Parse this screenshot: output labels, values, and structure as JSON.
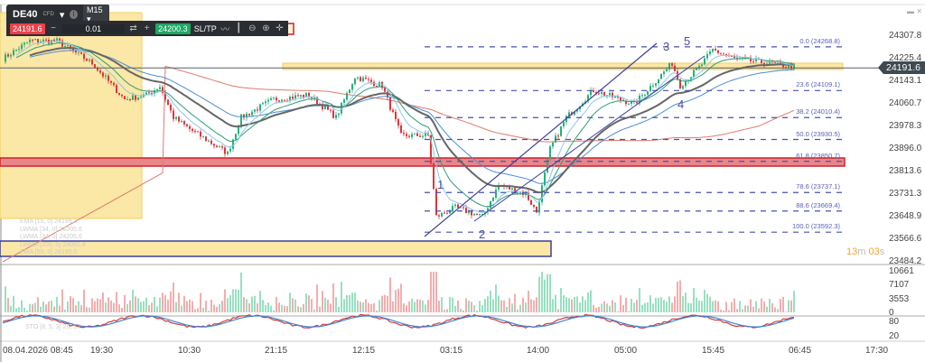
{
  "toolbar": {
    "symbol": "DE40",
    "symbol_type": "CFD",
    "timeframe": "M15",
    "sell_price": "24191.6",
    "quantity": "0.01",
    "buy_price": "24200.3",
    "sltp_label": "SL/TP",
    "minus": "−",
    "plus": "+"
  },
  "price_axis": [
    "24307.8",
    "24225.4",
    "24143.1",
    "24060.7",
    "23978.3",
    "23896.0",
    "23813.6",
    "23731.3",
    "23648.9",
    "23566.6",
    "23484.2"
  ],
  "current_price": "24191.6",
  "volume_axis": [
    "10661",
    "7107",
    "3553",
    "0"
  ],
  "stoch_axis": [
    "80",
    "20"
  ],
  "time_axis": [
    "08.04.2026 08:45",
    "19:30",
    "10:30",
    "21:15",
    "12:15",
    "03:15",
    "14:00",
    "05:00",
    "15:45",
    "06:45",
    "17:30"
  ],
  "timer": {
    "min": "13",
    "min_unit": "m",
    "sec": "03",
    "sec_unit": "s"
  },
  "fib_levels": [
    {
      "label": "0.0 (24268.8)",
      "price": 24268.8
    },
    {
      "label": "23.6 (24109.1)",
      "price": 24109.1
    },
    {
      "label": "38.2 (24010.4)",
      "price": 24010.4
    },
    {
      "label": "50.0 (23930.5)",
      "price": 23930.5
    },
    {
      "label": "61.8 (23850.7)",
      "price": 23850.7
    },
    {
      "label": "78.6 (23737.1)",
      "price": 23737.1
    },
    {
      "label": "88.6 (23669.4)",
      "price": 23669.4
    },
    {
      "label": "100.0 (23592.3)",
      "price": 23592.3
    }
  ],
  "waves": [
    "1",
    "2",
    "3",
    "4",
    "5"
  ],
  "indicators": [
    "EMA [15, 0] 24199.3",
    "LWMA [34, 0] 24205.6",
    "LWMA [34, 0] 24205.6",
    "LWMA [200, 0] 24092.4",
    "EMA [50, 0] 24195.6"
  ],
  "stoch_label": "STO [8, 5, 3] 25, 57",
  "colors": {
    "up": "#26b07a",
    "down": "#e0343c",
    "fib": "#4a50b0",
    "zone": "#fbe7a6",
    "red_zone": "#e8868a"
  },
  "chart_data": {
    "type": "candlestick",
    "price_range": [
      23484.2,
      24307.8
    ],
    "path_waypoints": [
      [
        0,
        24225
      ],
      [
        10,
        24291
      ],
      [
        20,
        24290
      ],
      [
        33,
        24209
      ],
      [
        45,
        24077
      ],
      [
        53,
        24093
      ],
      [
        58,
        24125
      ],
      [
        63,
        24011
      ],
      [
        70,
        23962
      ],
      [
        83,
        23880
      ],
      [
        88,
        24011
      ],
      [
        100,
        24077
      ],
      [
        113,
        24093
      ],
      [
        123,
        24011
      ],
      [
        130,
        24160
      ],
      [
        140,
        24127
      ],
      [
        147,
        23945
      ],
      [
        157,
        23945
      ],
      [
        160,
        23649
      ],
      [
        167,
        23682
      ],
      [
        177,
        23649
      ],
      [
        183,
        23764
      ],
      [
        193,
        23731
      ],
      [
        197,
        23665
      ],
      [
        202,
        23896
      ],
      [
        208,
        24011
      ],
      [
        218,
        24110
      ],
      [
        233,
        24060
      ],
      [
        247,
        24209
      ],
      [
        250,
        24127
      ],
      [
        257,
        24193
      ],
      [
        262,
        24258
      ],
      [
        270,
        24225
      ],
      [
        283,
        24209
      ],
      [
        292,
        24195
      ]
    ]
  }
}
